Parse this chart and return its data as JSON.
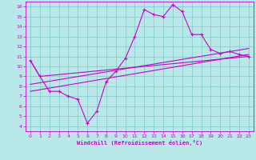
{
  "xlabel": "Windchill (Refroidissement éolien,°C)",
  "xlim": [
    -0.5,
    23.5
  ],
  "ylim": [
    3.5,
    16.5
  ],
  "xticks": [
    0,
    1,
    2,
    3,
    4,
    5,
    6,
    7,
    8,
    9,
    10,
    11,
    12,
    13,
    14,
    15,
    16,
    17,
    18,
    19,
    20,
    21,
    22,
    23
  ],
  "yticks": [
    4,
    5,
    6,
    7,
    8,
    9,
    10,
    11,
    12,
    13,
    14,
    15,
    16
  ],
  "bg_color": "#b8e8e8",
  "line_color": "#cc00cc",
  "grid_color": "#88cccc",
  "line1_x": [
    0,
    1,
    2,
    3,
    4,
    5,
    6,
    7,
    8,
    9,
    10,
    11,
    12,
    13,
    14,
    15,
    16,
    17,
    18,
    19,
    20,
    21,
    22,
    23
  ],
  "line1_y": [
    10.6,
    9.0,
    7.5,
    7.5,
    7.0,
    6.7,
    4.3,
    5.5,
    8.5,
    9.5,
    10.8,
    13.0,
    15.7,
    15.2,
    15.0,
    16.2,
    15.5,
    13.2,
    13.2,
    11.7,
    11.3,
    11.5,
    11.2,
    11.0
  ],
  "line2_x": [
    0,
    1,
    23
  ],
  "line2_y": [
    10.6,
    9.0,
    11.0
  ],
  "line3_x": [
    0,
    23
  ],
  "line3_y": [
    8.2,
    11.8
  ],
  "line4_x": [
    0,
    23
  ],
  "line4_y": [
    7.5,
    11.2
  ]
}
